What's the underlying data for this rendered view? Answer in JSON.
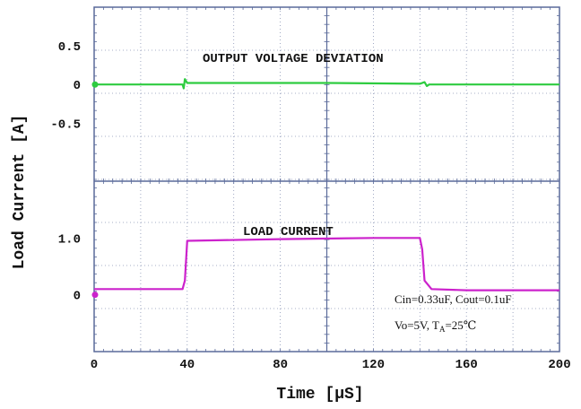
{
  "chart_data": [
    {
      "type": "line",
      "panel": "top",
      "annotation": "OUTPUT VOLTAGE DEVIATION",
      "ytick_labels": [
        "0.5",
        "0",
        "-0.5"
      ],
      "ytick_values": [
        0.5,
        0,
        -0.5
      ],
      "ylim": [
        -1.25,
        1.0
      ],
      "series": [
        {
          "color": "#2ecc40",
          "x": [
            0,
            38,
            38.5,
            39,
            40,
            60,
            100,
            140,
            142,
            143,
            144,
            160,
            200
          ],
          "y": [
            0,
            0,
            -0.05,
            0.07,
            0.02,
            0.02,
            0.02,
            0.01,
            0.03,
            -0.02,
            0.0,
            0.0,
            0.0
          ]
        }
      ]
    },
    {
      "type": "line",
      "panel": "bottom",
      "annotation": "LOAD CURRENT",
      "ytick_labels": [
        "1.0",
        "0"
      ],
      "ytick_values": [
        1.0,
        0
      ],
      "ylim": [
        -1.0,
        2.0
      ],
      "series": [
        {
          "color": "#cc22cc",
          "x": [
            0,
            38,
            39,
            40,
            80,
            120,
            140,
            141,
            142,
            145,
            160,
            200
          ],
          "y": [
            0.1,
            0.1,
            0.25,
            0.95,
            0.98,
            1.0,
            1.0,
            0.8,
            0.25,
            0.1,
            0.08,
            0.08
          ]
        }
      ],
      "notes": [
        "Cin=0.33uF, Cout=0.1uF",
        "Vo=5V, T",
        "A",
        "=25℃"
      ]
    }
  ],
  "axes": {
    "xlabel": "Time [μS]",
    "ylabel": "Load Current [A]",
    "xlim": [
      0,
      200
    ],
    "xtick_values": [
      0,
      40,
      80,
      120,
      160,
      200
    ],
    "xtick_labels": [
      "0",
      "40",
      "80",
      "120",
      "160",
      "200"
    ],
    "grid": true
  }
}
